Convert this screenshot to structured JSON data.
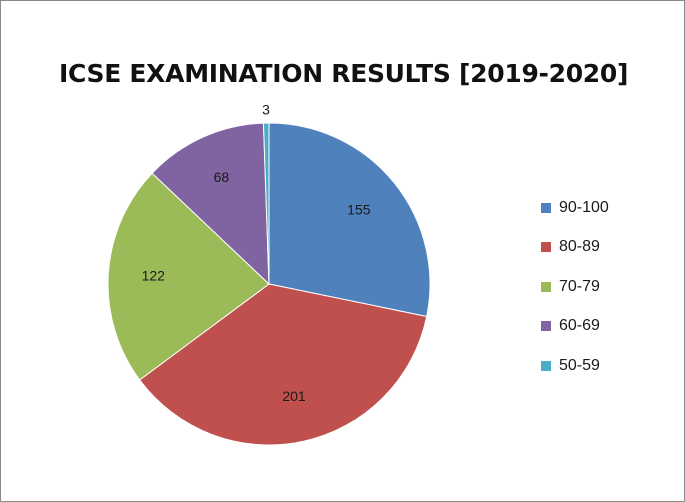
{
  "chart_data": {
    "type": "pie",
    "title": "ICSE EXAMINATION RESULTS [2019-2020]",
    "categories": [
      "90-100",
      "80-89",
      "70-79",
      "60-69",
      "50-59"
    ],
    "values": [
      155,
      201,
      122,
      68,
      3
    ],
    "colors": [
      "#4f81bd",
      "#c0504d",
      "#9bbb59",
      "#8064a2",
      "#4bacc6"
    ],
    "legend_position": "right",
    "data_labels": true
  }
}
